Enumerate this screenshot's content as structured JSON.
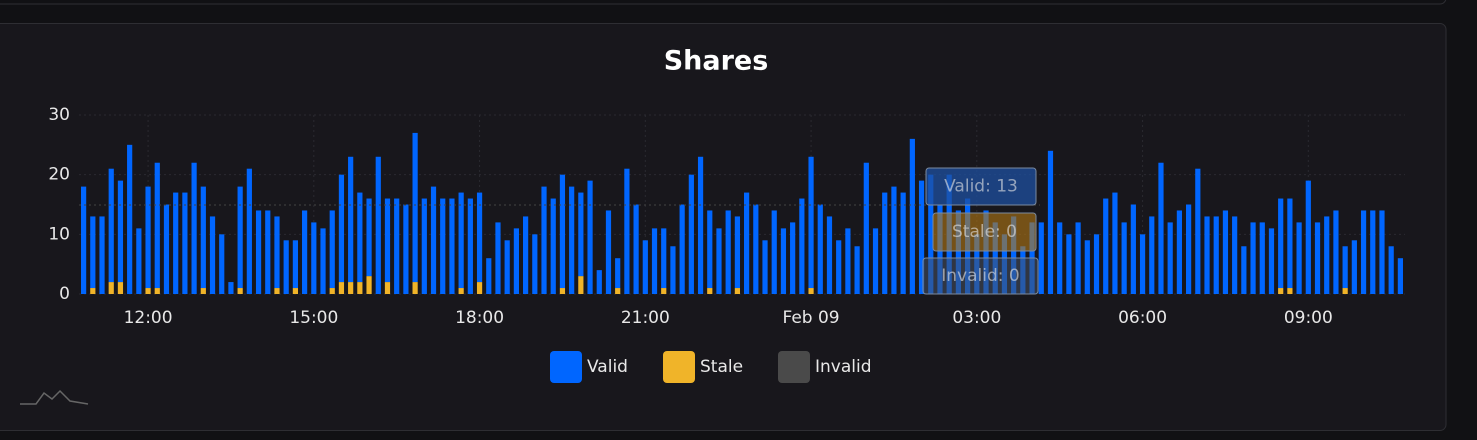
{
  "chart_data": {
    "type": "stacked-bar",
    "title": "Shares",
    "categories": [
      null,
      null,
      null,
      null,
      null,
      null,
      null,
      "12:00",
      null,
      null,
      null,
      null,
      null,
      null,
      null,
      null,
      null,
      null,
      null,
      null,
      null,
      null,
      null,
      null,
      null,
      "15:00",
      null,
      null,
      null,
      null,
      null,
      null,
      null,
      null,
      null,
      null,
      null,
      null,
      null,
      null,
      null,
      null,
      null,
      "18:00",
      null,
      null,
      null,
      null,
      null,
      null,
      null,
      null,
      null,
      null,
      null,
      null,
      null,
      null,
      null,
      null,
      null,
      "21:00",
      null,
      null,
      null,
      null,
      null,
      null,
      null,
      null,
      null,
      null,
      null,
      null,
      null,
      null,
      null,
      null,
      null,
      "Feb 09",
      null,
      null,
      null,
      null,
      null,
      null,
      null,
      null,
      null,
      null,
      null,
      null,
      null,
      null,
      null,
      null,
      null,
      "03:00",
      null,
      null,
      null,
      null,
      null,
      null,
      null,
      null,
      null,
      null,
      null,
      null,
      null,
      null,
      null,
      null,
      null,
      "06:00",
      null,
      null,
      null,
      null,
      null,
      null,
      null,
      null,
      null,
      null,
      null,
      null,
      null,
      null,
      null,
      null,
      null,
      "09:00",
      null,
      null,
      null,
      null,
      null,
      null,
      null,
      null,
      null,
      null
    ],
    "series": [
      {
        "name": "Stale",
        "color": "#f0b429",
        "values": [
          0,
          1,
          0,
          2,
          2,
          0,
          0,
          1,
          1,
          0,
          0,
          0,
          0,
          1,
          0,
          0,
          0,
          1,
          0,
          0,
          0,
          1,
          0,
          1,
          0,
          0,
          0,
          1,
          2,
          2,
          2,
          3,
          0,
          2,
          0,
          0,
          2,
          0,
          0,
          0,
          0,
          1,
          0,
          2,
          0,
          0,
          0,
          0,
          0,
          0,
          0,
          0,
          1,
          0,
          3,
          0,
          0,
          0,
          1,
          0,
          0,
          0,
          0,
          1,
          0,
          0,
          0,
          0,
          1,
          0,
          0,
          1,
          0,
          0,
          0,
          0,
          0,
          0,
          0,
          1,
          0,
          0,
          0,
          0,
          0,
          0,
          0,
          0,
          0,
          0,
          0,
          0,
          0,
          0,
          0,
          0,
          0,
          0,
          0,
          0,
          0,
          0,
          0,
          0,
          0,
          0,
          0,
          0,
          0,
          0,
          0,
          0,
          0,
          0,
          0,
          0,
          0,
          0,
          0,
          0,
          0,
          0,
          0,
          0,
          0,
          0,
          0,
          0,
          0,
          0,
          1,
          1,
          0,
          0,
          0,
          0,
          0,
          1,
          0,
          0,
          0,
          0,
          0,
          0
        ]
      },
      {
        "name": "Valid",
        "color": "#0066ff",
        "values": [
          18,
          12,
          13,
          19,
          17,
          25,
          11,
          17,
          21,
          15,
          17,
          17,
          22,
          17,
          13,
          10,
          2,
          17,
          21,
          14,
          14,
          12,
          9,
          8,
          14,
          12,
          11,
          13,
          18,
          21,
          15,
          13,
          23,
          14,
          16,
          15,
          25,
          16,
          18,
          16,
          16,
          16,
          16,
          15,
          6,
          12,
          9,
          11,
          13,
          10,
          18,
          16,
          19,
          18,
          14,
          19,
          4,
          14,
          5,
          21,
          15,
          9,
          11,
          10,
          8,
          15,
          20,
          23,
          13,
          11,
          14,
          12,
          17,
          15,
          9,
          14,
          11,
          12,
          16,
          22,
          15,
          13,
          9,
          11,
          8,
          22,
          11,
          17,
          18,
          17,
          26,
          19,
          20,
          15,
          20,
          14,
          16,
          10,
          14,
          12,
          10,
          13,
          8,
          12,
          12,
          24,
          12,
          10,
          12,
          9,
          10,
          16,
          17,
          12,
          15,
          10,
          13,
          22,
          12,
          14,
          15,
          21,
          13,
          13,
          14,
          13,
          8,
          12,
          12,
          11,
          15,
          15,
          12,
          19,
          12,
          13,
          14,
          7,
          9,
          14,
          14,
          14,
          8,
          6
        ]
      },
      {
        "name": "Invalid",
        "color": "#4a4a4a",
        "values": [
          0,
          0,
          0,
          0,
          0,
          0,
          0,
          0,
          0,
          0,
          0,
          0,
          0,
          0,
          0,
          0,
          0,
          0,
          0,
          0,
          0,
          0,
          0,
          0,
          0,
          0,
          0,
          0,
          0,
          0,
          0,
          0,
          0,
          0,
          0,
          0,
          0,
          0,
          0,
          0,
          0,
          0,
          0,
          0,
          0,
          0,
          0,
          0,
          0,
          0,
          0,
          0,
          0,
          0,
          0,
          0,
          0,
          0,
          0,
          0,
          0,
          0,
          0,
          0,
          0,
          0,
          0,
          0,
          0,
          0,
          0,
          0,
          0,
          0,
          0,
          0,
          0,
          0,
          0,
          0,
          0,
          0,
          0,
          0,
          0,
          0,
          0,
          0,
          0,
          0,
          0,
          0,
          0,
          0,
          0,
          0,
          0,
          0,
          0,
          0,
          0,
          0,
          0,
          0,
          0,
          0,
          0,
          0,
          0,
          0,
          0,
          0,
          0,
          0,
          0,
          0,
          0,
          0,
          0,
          0,
          0,
          0,
          0,
          0,
          0,
          0,
          0,
          0,
          0,
          0,
          0,
          0,
          0,
          0,
          0,
          0,
          0,
          0,
          0,
          0,
          0,
          0,
          0,
          0
        ]
      }
    ],
    "ylim": [
      0,
      30
    ],
    "yticks": [
      0,
      10,
      20,
      30
    ],
    "grid": true,
    "tooltip": [
      "Valid: 13",
      "Stale: 0",
      "Invalid: 0"
    ]
  }
}
